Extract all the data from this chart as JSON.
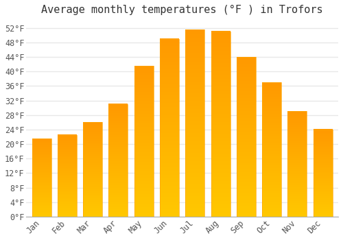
{
  "title": "Average monthly temperatures (°F ) in Trofors",
  "months": [
    "Jan",
    "Feb",
    "Mar",
    "Apr",
    "May",
    "Jun",
    "Jul",
    "Aug",
    "Sep",
    "Oct",
    "Nov",
    "Dec"
  ],
  "values": [
    21.5,
    22.5,
    26.0,
    31.0,
    41.5,
    49.0,
    51.5,
    51.0,
    44.0,
    37.0,
    29.0,
    24.0
  ],
  "bar_color_top": "#FFBF00",
  "bar_color_bottom": "#FFA500",
  "bar_edge_color": "#FFA500",
  "background_color": "#FFFFFF",
  "grid_color": "#E8E8E8",
  "yticks": [
    0,
    4,
    8,
    12,
    16,
    20,
    24,
    28,
    32,
    36,
    40,
    44,
    48,
    52
  ],
  "ylim": [
    0,
    54
  ],
  "title_fontsize": 11,
  "tick_fontsize": 8.5,
  "tick_font_family": "monospace"
}
